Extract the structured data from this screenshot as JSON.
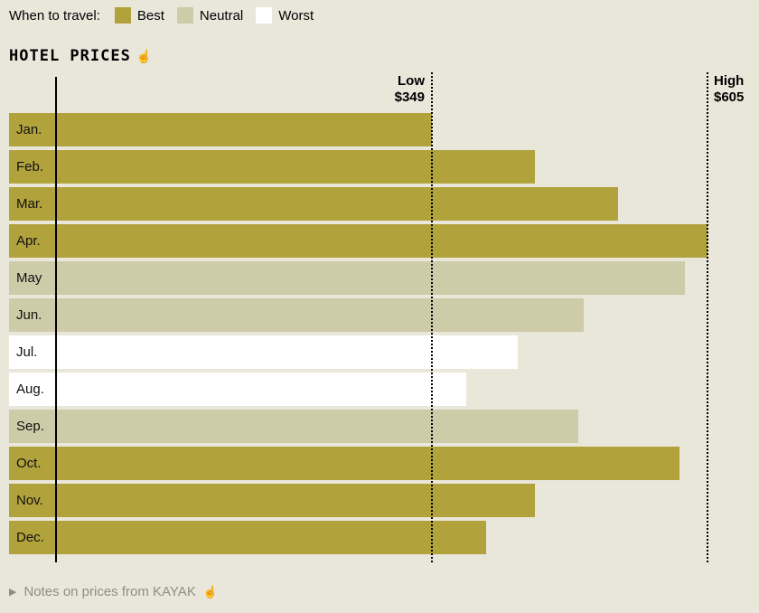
{
  "colors": {
    "background": "#e9e6da",
    "best": "#b1a23c",
    "neutral": "#cecba8",
    "worst": "#ffffff",
    "footer_text": "#8e8e87"
  },
  "legend": {
    "label": "When to travel:",
    "items": [
      {
        "label": "Best",
        "rating": "best"
      },
      {
        "label": "Neutral",
        "rating": "neutral"
      },
      {
        "label": "Worst",
        "rating": "worst"
      }
    ]
  },
  "title": "HOTEL PRICES",
  "interactive_icon": "☝",
  "chart_data": {
    "type": "bar",
    "orientation": "horizontal",
    "title": "HOTEL PRICES",
    "categories": [
      "Jan.",
      "Feb.",
      "Mar.",
      "Apr.",
      "May",
      "Jun.",
      "Jul.",
      "Aug.",
      "Sep.",
      "Oct.",
      "Nov.",
      "Dec."
    ],
    "values": [
      349,
      445,
      522,
      605,
      584,
      490,
      429,
      381,
      485,
      579,
      445,
      399
    ],
    "ratings": [
      "best",
      "best",
      "best",
      "best",
      "neutral",
      "neutral",
      "worst",
      "worst",
      "neutral",
      "best",
      "best",
      "best"
    ],
    "xlim": [
      0,
      605
    ],
    "grid": false,
    "legend_position": "top",
    "annotations": {
      "low": {
        "label": "Low",
        "value": "$349",
        "x": 349
      },
      "high": {
        "label": "High",
        "value": "$605",
        "x": 605
      }
    }
  },
  "footer": {
    "icon": "▶",
    "text": "Notes on prices from KAYAK",
    "interactive_icon": "☝"
  }
}
